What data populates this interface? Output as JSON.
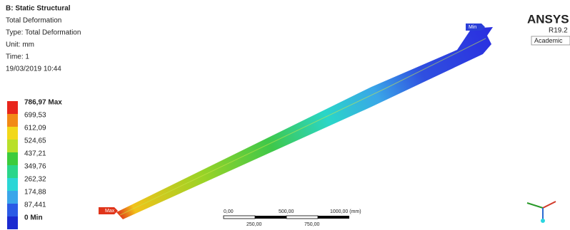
{
  "header": {
    "lines": [
      "B: Static Structural",
      "Total Deformation",
      "Type: Total Deformation",
      "Unit: mm",
      "Time: 1",
      "19/03/2019 10:44"
    ]
  },
  "legend": {
    "labels": [
      "786,97 Max",
      "699,53",
      "612,09",
      "524,65",
      "437,21",
      "349,76",
      "262,32",
      "174,88",
      "87,441",
      "0 Min"
    ]
  },
  "markers": {
    "max": "Max",
    "min": "Min"
  },
  "scale_bar": {
    "top": [
      "0,00",
      "500,00",
      "1000,00 (mm)"
    ],
    "bottom": [
      "250,00",
      "750,00"
    ]
  },
  "logo": {
    "brand": "ANSYS",
    "version": "R19.2",
    "license": "Academic"
  }
}
